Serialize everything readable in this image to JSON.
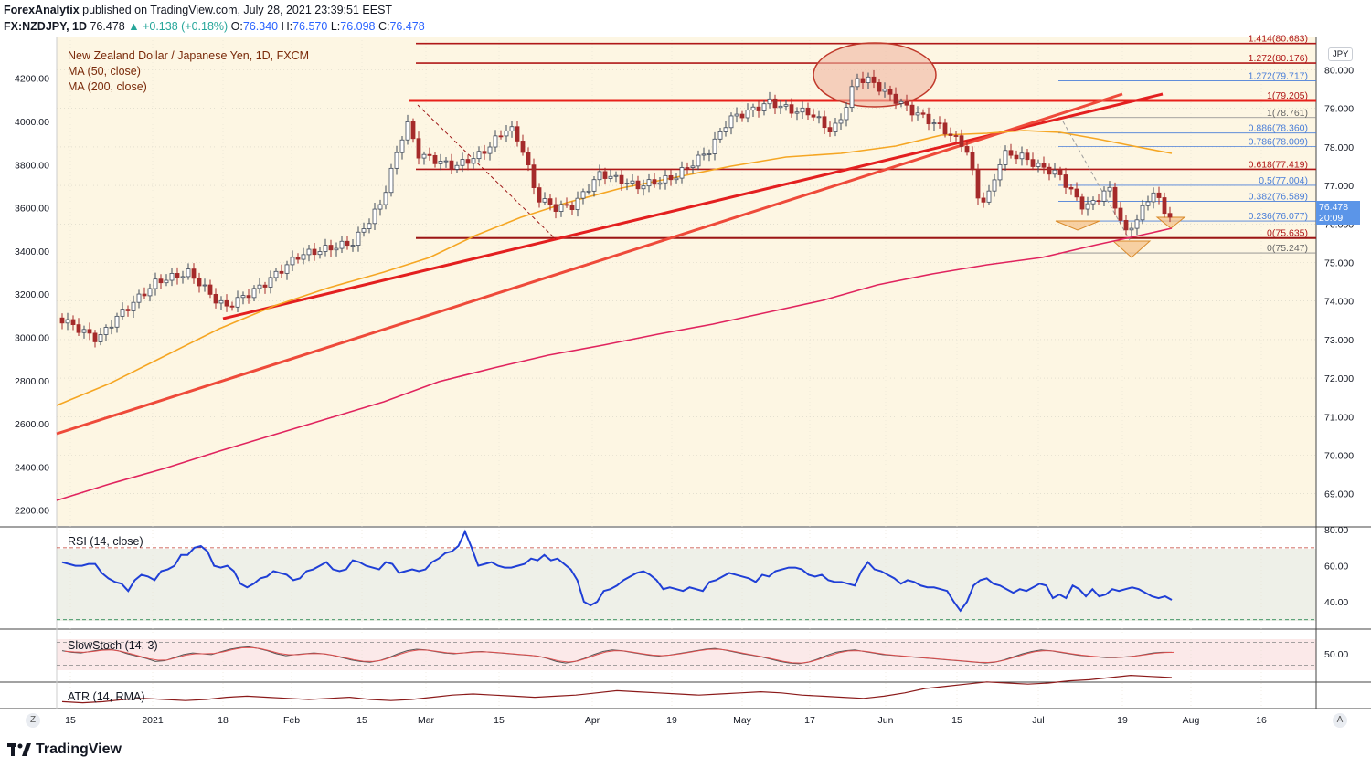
{
  "header": {
    "publisher": "ForexAnalytix",
    "published_text": "published on TradingView.com, July 28, 2021 23:39:51 EEST",
    "symbol": "FX:NZDJPY, 1D",
    "last": "76.478",
    "change": "+0.138 (+0.18%)",
    "o_label": "O:",
    "o": "76.340",
    "h_label": "H:",
    "h": "76.570",
    "l_label": "L:",
    "l": "76.098",
    "c_label": "C:",
    "c": "76.478"
  },
  "legend": {
    "title": "New Zealand Dollar / Japanese Yen, 1D, FXCM",
    "ma50": "MA (50, close)",
    "ma200": "MA (200, close)",
    "rsi": "RSI (14, close)",
    "stoch": "SlowStoch (14, 3)",
    "atr": "ATR (14, RMA)"
  },
  "currency_badge": "JPY",
  "price_tag": {
    "price": "76.478",
    "countdown": "20:09"
  },
  "footer_brand": "TradingView",
  "corner_left": "Z",
  "corner_right": "A",
  "colors": {
    "up": "#26a69a",
    "candle": "#a52a2a",
    "ma50": "#f5a623",
    "ma200": "#e0245e",
    "trend": "#e8201a",
    "rsi": "#1f3fd6",
    "fib_red": "#b01818",
    "fib_blue": "#4a7ed8",
    "accent": "#2962ff"
  },
  "chart_data": {
    "type": "candlestick",
    "title": "New Zealand Dollar / Japanese Yen, 1D, FXCM",
    "symbol": "NZDJPY",
    "left_axis_ticks": [
      "2200.00",
      "2400.00",
      "2600.00",
      "2800.00",
      "3000.00",
      "3200.00",
      "3400.00",
      "3600.00",
      "3800.00",
      "4000.00",
      "4200.00"
    ],
    "right_axis_ticks": [
      "69.000",
      "70.000",
      "71.000",
      "72.000",
      "73.000",
      "74.000",
      "75.000",
      "76.000",
      "77.000",
      "78.000",
      "79.000",
      "80.000"
    ],
    "ylim": [
      68.5,
      80.6
    ],
    "x_ticks": [
      "15",
      "2021",
      "18",
      "Feb",
      "15",
      "Mar",
      "15",
      "Apr",
      "19",
      "May",
      "17",
      "Jun",
      "15",
      "Jul",
      "19",
      "Aug",
      "16"
    ],
    "fib_levels": [
      {
        "label": "1.414(80.683)",
        "value": 80.683,
        "color": "red"
      },
      {
        "label": "1.272(80.176)",
        "value": 80.176,
        "color": "red"
      },
      {
        "label": "1.272(79.717)",
        "value": 79.717,
        "color": "blue"
      },
      {
        "label": "1(79.205)",
        "value": 79.205,
        "color": "red"
      },
      {
        "label": "1(78.761)",
        "value": 78.761,
        "color": "gray"
      },
      {
        "label": "0.886(78.360)",
        "value": 78.36,
        "color": "blue"
      },
      {
        "label": "0.786(78.009)",
        "value": 78.009,
        "color": "blue"
      },
      {
        "label": "0.618(77.419)",
        "value": 77.419,
        "color": "red"
      },
      {
        "label": "0.5(77.004)",
        "value": 77.004,
        "color": "blue"
      },
      {
        "label": "0.382(76.589)",
        "value": 76.589,
        "color": "blue"
      },
      {
        "label": "0.236(76.077)",
        "value": 76.077,
        "color": "blue"
      },
      {
        "label": "0(75.635)",
        "value": 75.635,
        "color": "red"
      },
      {
        "label": "0(75.247)",
        "value": 75.247,
        "color": "gray"
      }
    ],
    "rsi_ticks": [
      "40.00",
      "60.00",
      "80.00"
    ],
    "stoch_ticks": [
      "50.00"
    ],
    "rsi": [
      62,
      61,
      60,
      60,
      61,
      61,
      56,
      53,
      51,
      50,
      46,
      52,
      55,
      54,
      52,
      57,
      58,
      60,
      66,
      66,
      70,
      71,
      68,
      60,
      59,
      60,
      57,
      50,
      48,
      50,
      53,
      54,
      57,
      56,
      55,
      52,
      53,
      57,
      58,
      60,
      62,
      58,
      57,
      58,
      63,
      62,
      60,
      59,
      58,
      62,
      61,
      56,
      57,
      58,
      57,
      58,
      62,
      64,
      67,
      68,
      71,
      79,
      70,
      60,
      61,
      62,
      60,
      59,
      59,
      60,
      61,
      64,
      63,
      66,
      63,
      64,
      61,
      58,
      52,
      40,
      38,
      40,
      46,
      47,
      49,
      52,
      54,
      56,
      57,
      55,
      52,
      47,
      48,
      47,
      46,
      48,
      47,
      46,
      51,
      52,
      54,
      56,
      55,
      54,
      53,
      51,
      55,
      54,
      57,
      58,
      59,
      59,
      58,
      55,
      54,
      55,
      52,
      51,
      51,
      50,
      49,
      57,
      62,
      58,
      57,
      55,
      53,
      50,
      52,
      51,
      49,
      48,
      48,
      47,
      46,
      40,
      35,
      40,
      49,
      52,
      53,
      50,
      49,
      47,
      45,
      47,
      46,
      48,
      50,
      49,
      42,
      44,
      42,
      49,
      47,
      43,
      47,
      43,
      44,
      47,
      46,
      47,
      48,
      47,
      45,
      43,
      42,
      43,
      41
    ],
    "stoch": [
      58,
      54,
      52,
      56,
      60,
      62,
      58,
      50,
      44,
      38,
      30,
      32,
      40,
      48,
      52,
      50,
      48,
      55,
      62,
      66,
      68,
      64,
      58,
      50,
      45,
      48,
      50,
      52,
      50,
      46,
      40,
      34,
      30,
      28,
      32,
      40,
      50,
      58,
      62,
      60,
      56,
      52,
      50,
      52,
      55,
      56,
      54,
      52,
      50,
      48,
      46,
      44,
      38,
      30,
      26,
      30,
      38,
      48,
      56,
      60,
      58,
      54,
      50,
      46,
      44,
      46,
      50,
      54,
      58,
      62,
      64,
      60,
      55,
      50,
      46,
      42,
      36,
      30,
      26,
      24,
      28,
      36,
      46,
      54,
      58,
      60,
      56,
      52,
      48,
      46,
      44,
      42,
      40,
      38,
      36,
      34,
      32,
      30,
      28,
      26,
      28,
      34,
      42,
      50,
      56,
      60,
      58,
      54,
      50,
      46,
      44,
      42,
      40,
      40,
      42,
      44,
      48,
      52,
      54,
      54
    ],
    "atr": [
      0.58,
      0.57,
      0.58,
      0.6,
      0.61,
      0.6,
      0.59,
      0.6,
      0.62,
      0.63,
      0.62,
      0.61,
      0.6,
      0.61,
      0.62,
      0.6,
      0.59,
      0.6,
      0.62,
      0.64,
      0.65,
      0.64,
      0.63,
      0.62,
      0.63,
      0.64,
      0.66,
      0.68,
      0.67,
      0.66,
      0.65,
      0.64,
      0.65,
      0.66,
      0.67,
      0.66,
      0.64,
      0.63,
      0.62,
      0.61,
      0.63,
      0.66,
      0.7,
      0.72,
      0.74,
      0.76,
      0.75,
      0.74,
      0.75,
      0.77,
      0.78,
      0.8,
      0.82,
      0.81,
      0.8
    ]
  }
}
